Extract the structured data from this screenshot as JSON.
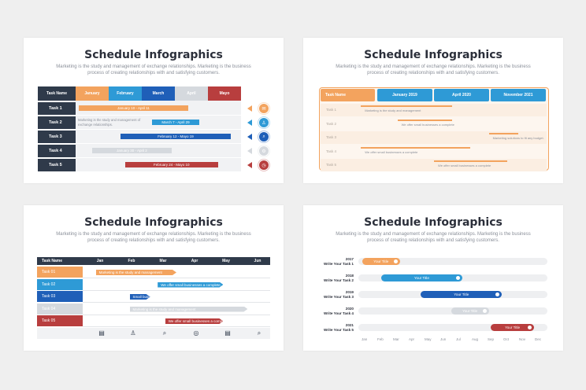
{
  "common": {
    "title": "Schedule Infographics",
    "subtitle": "Marketing is the study and management of exchange relationships. Marketing is the business process of creating relationships with and satisfying customers."
  },
  "slide1": {
    "corner": "Task Name",
    "months": [
      "January",
      "February",
      "March",
      "April",
      "Mayo"
    ],
    "month_colors": [
      "#f3a35e",
      "#2e9ad6",
      "#1f5fb8",
      "#d5d9de",
      "#b83e3e"
    ],
    "tasks": [
      {
        "label": "Task 1",
        "bar": "January 10 - April 11",
        "color": "#f3a35e",
        "start": 0.02,
        "end": 0.68,
        "icon": "megaphone-icon",
        "icon_glyph": "✉"
      },
      {
        "label": "Task 2",
        "bar": "March 7 - April 29",
        "color": "#2e9ad6",
        "start": 0.46,
        "end": 0.75,
        "note": "Marketing is the study and management of exchange relationships.",
        "icon": "person-icon",
        "icon_glyph": "♙"
      },
      {
        "label": "Task 3",
        "bar": "February 12 - Mayo 19",
        "color": "#1f5fb8",
        "start": 0.27,
        "end": 0.94,
        "icon": "search-icon",
        "icon_glyph": "⌕"
      },
      {
        "label": "Task 4",
        "bar": "January 30 - April 2",
        "color": "#d5d9de",
        "start": 0.1,
        "end": 0.58,
        "icon": "gear-icon",
        "icon_glyph": "⚙"
      },
      {
        "label": "Task 5",
        "bar": "February 24 - Mayo 10",
        "color": "#b83e3e",
        "start": 0.3,
        "end": 0.86,
        "icon": "chart-icon",
        "icon_glyph": "◷"
      }
    ]
  },
  "slide2": {
    "corner": "Task Name",
    "columns": [
      "January 2019",
      "April 2020",
      "November 2021"
    ],
    "tasks": [
      {
        "label": "Task 1",
        "note": "Marketing is the study and management",
        "start": 0.18,
        "end": 0.58
      },
      {
        "label": "Task 2",
        "note": "We offer small businesses a complete",
        "start": 0.34,
        "end": 0.58
      },
      {
        "label": "Task 3",
        "note": "Marketing solutions to fit any budget.",
        "start": 0.74,
        "end": 0.87
      },
      {
        "label": "Task 4",
        "note": "We offer small businesses a complete",
        "start": 0.18,
        "end": 0.66
      },
      {
        "label": "Task 5",
        "note": "We offer small businesses a complete",
        "start": 0.5,
        "end": 0.82
      }
    ]
  },
  "slide3": {
    "corner": "Task Name",
    "months": [
      "Jan",
      "Feb",
      "Mar",
      "Apr",
      "May",
      "Jun"
    ],
    "tasks": [
      {
        "label": "Task 01",
        "color": "#f3a35e",
        "bar": "Marketing is the study and management",
        "start": 0.07,
        "end": 0.5
      },
      {
        "label": "Task 02",
        "color": "#2e9ad6",
        "bar": "We offer small businesses a complete",
        "start": 0.4,
        "end": 0.75
      },
      {
        "label": "Task 03",
        "color": "#1f5fb8",
        "bar": "Small businesses",
        "start": 0.25,
        "end": 0.36
      },
      {
        "label": "Task 04",
        "color": "#d5d9de",
        "bar": "Marketing is the study and management",
        "start": 0.25,
        "end": 0.88
      },
      {
        "label": "Task 05",
        "color": "#b83e3e",
        "bar": "We offer small businesses a complete",
        "start": 0.44,
        "end": 0.75
      }
    ],
    "footer_icons": [
      "document-icon",
      "person-icon",
      "search-icon",
      "target-icon",
      "document-icon",
      "search-icon"
    ],
    "footer_glyphs": [
      "▤",
      "♙",
      "⌕",
      "◎",
      "▤",
      "⌕"
    ]
  },
  "slide4": {
    "months": [
      "Jan",
      "Feb",
      "Mar",
      "Apr",
      "May",
      "Jun",
      "Jul",
      "Aug",
      "Sep",
      "Oct",
      "Nov",
      "Dec"
    ],
    "tasks": [
      {
        "year": "2017",
        "label": "Write Your Task 1",
        "pill": "Your Title",
        "color": "#f3a35e",
        "start": 0.02,
        "end": 0.22
      },
      {
        "year": "2018",
        "label": "Write Your Task 2",
        "pill": "Your Title",
        "color": "#2e9ad6",
        "start": 0.12,
        "end": 0.55
      },
      {
        "year": "2019",
        "label": "Write Your Task 3",
        "pill": "Your Title",
        "color": "#1f5fb8",
        "start": 0.33,
        "end": 0.76
      },
      {
        "year": "2020",
        "label": "Write Your Task 4",
        "pill": "Your Title",
        "color": "#d5d9de",
        "start": 0.49,
        "end": 0.69
      },
      {
        "year": "2021",
        "label": "Write Your Task 5",
        "pill": "Your Title",
        "color": "#b83e3e",
        "start": 0.7,
        "end": 0.93
      }
    ]
  }
}
